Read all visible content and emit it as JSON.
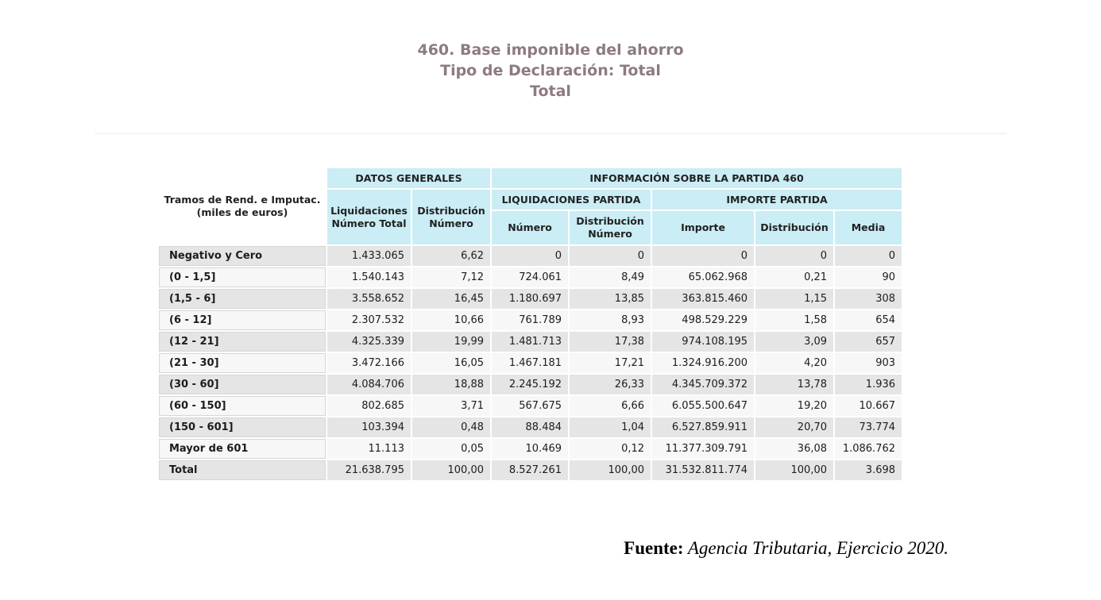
{
  "title": {
    "line1": "460. Base imponible del ahorro",
    "line2": "Tipo de Declaración: Total",
    "line3": "Total"
  },
  "table": {
    "row_axis_header": {
      "line1": "Tramos de Rend. e Imputac.",
      "line2": "(miles de euros)"
    },
    "groups": {
      "datos_generales": "DATOS GENERALES",
      "informacion_partida": "INFORMACIÓN SOBRE LA PARTIDA 460",
      "liquidaciones_partida": "LIQUIDACIONES PARTIDA",
      "importe_partida": "IMPORTE PARTIDA"
    },
    "columns": [
      "Liquidaciones Número Total",
      "Distribución Número",
      "Número",
      "Distribución Número",
      "Importe",
      "Distribución",
      "Media"
    ],
    "rows": [
      {
        "label": "Negativo y Cero",
        "values": [
          "1.433.065",
          "6,62",
          "0",
          "0",
          "0",
          "0",
          "0"
        ]
      },
      {
        "label": "(0 - 1,5]",
        "values": [
          "1.540.143",
          "7,12",
          "724.061",
          "8,49",
          "65.062.968",
          "0,21",
          "90"
        ]
      },
      {
        "label": "(1,5 - 6]",
        "values": [
          "3.558.652",
          "16,45",
          "1.180.697",
          "13,85",
          "363.815.460",
          "1,15",
          "308"
        ]
      },
      {
        "label": "(6 - 12]",
        "values": [
          "2.307.532",
          "10,66",
          "761.789",
          "8,93",
          "498.529.229",
          "1,58",
          "654"
        ]
      },
      {
        "label": "(12 - 21]",
        "values": [
          "4.325.339",
          "19,99",
          "1.481.713",
          "17,38",
          "974.108.195",
          "3,09",
          "657"
        ]
      },
      {
        "label": "(21 - 30]",
        "values": [
          "3.472.166",
          "16,05",
          "1.467.181",
          "17,21",
          "1.324.916.200",
          "4,20",
          "903"
        ]
      },
      {
        "label": "(30 - 60]",
        "values": [
          "4.084.706",
          "18,88",
          "2.245.192",
          "26,33",
          "4.345.709.372",
          "13,78",
          "1.936"
        ]
      },
      {
        "label": "(60 - 150]",
        "values": [
          "802.685",
          "3,71",
          "567.675",
          "6,66",
          "6.055.500.647",
          "19,20",
          "10.667"
        ]
      },
      {
        "label": "(150 - 601]",
        "values": [
          "103.394",
          "0,48",
          "88.484",
          "1,04",
          "6.527.859.911",
          "20,70",
          "73.774"
        ]
      },
      {
        "label": "Mayor de 601",
        "values": [
          "11.113",
          "0,05",
          "10.469",
          "0,12",
          "11.377.309.791",
          "36,08",
          "1.086.762"
        ]
      },
      {
        "label": "Total",
        "values": [
          "21.638.795",
          "100,00",
          "8.527.261",
          "100,00",
          "31.532.811.774",
          "100,00",
          "3.698"
        ]
      }
    ]
  },
  "footer": {
    "label": "Fuente:",
    "text": " Agencia Tributaria, Ejercicio 2020."
  },
  "colors": {
    "header_blue": "#cbedf5",
    "row_shade": "#e5e5e5",
    "row_light": "#f7f7f7",
    "title_color": "#8d7b80"
  }
}
